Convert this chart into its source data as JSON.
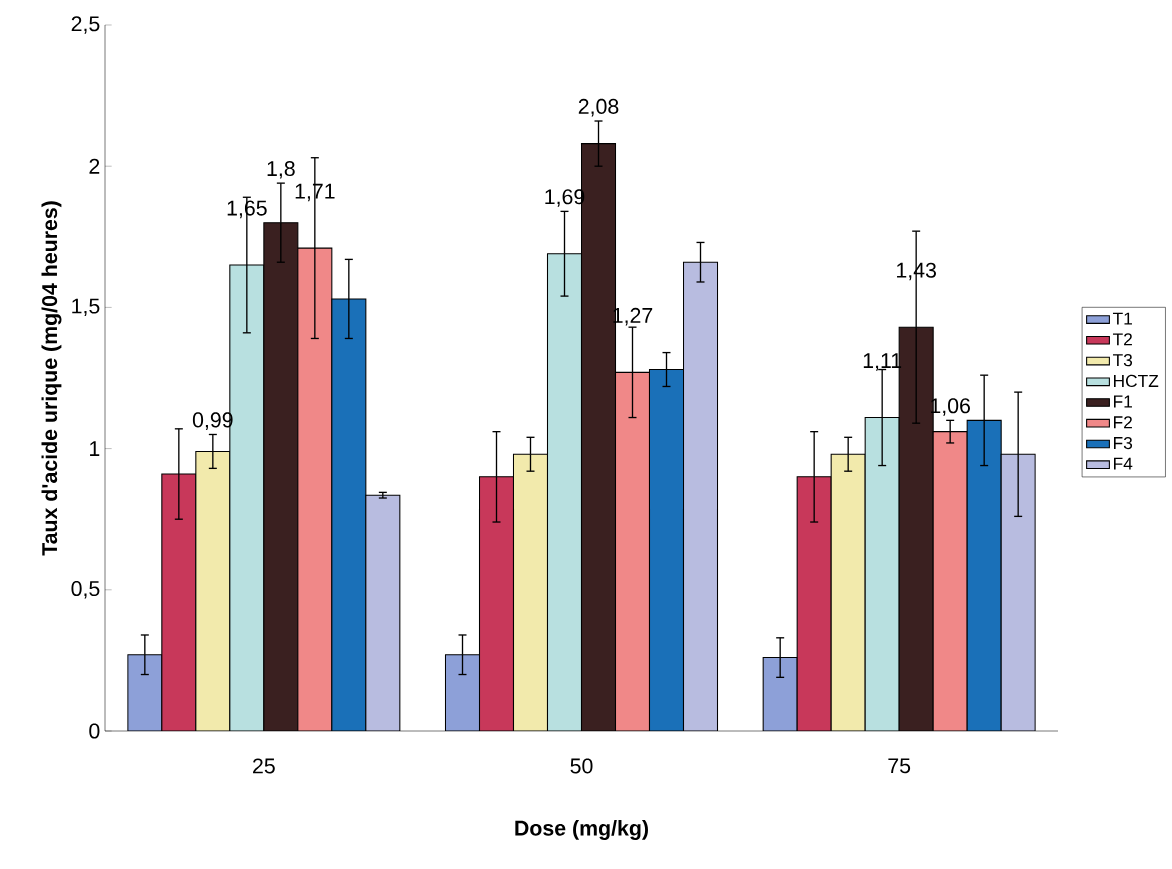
{
  "chart_data": {
    "type": "bar",
    "xlabel": "Dose (mg/kg)",
    "ylabel": "Taux d'acide urique (mg/04 heures)",
    "categories": [
      "25",
      "50",
      "75"
    ],
    "ylim": [
      0,
      2.5
    ],
    "yticks": [
      0,
      {
        "value": 0.5,
        "label": "0,5"
      },
      1,
      {
        "value": 1.5,
        "label": "1,5"
      },
      2,
      {
        "value": 2.5,
        "label": "2,5"
      }
    ],
    "grid": false,
    "legend": "right",
    "series": [
      {
        "name": "T1",
        "color": "#8da0d8",
        "values": [
          0.27,
          0.27,
          0.26
        ],
        "errors": [
          0.07,
          0.07,
          0.07
        ],
        "value_labels": [
          null,
          null,
          null
        ]
      },
      {
        "name": "T2",
        "color": "#c8385a",
        "values": [
          0.91,
          0.9,
          0.9
        ],
        "errors": [
          0.16,
          0.16,
          0.16
        ],
        "value_labels": [
          null,
          null,
          null
        ]
      },
      {
        "name": "T3",
        "color": "#f2eaac",
        "values": [
          0.99,
          0.98,
          0.98
        ],
        "errors": [
          0.06,
          0.06,
          0.06
        ],
        "value_labels": [
          "0,99",
          null,
          null
        ]
      },
      {
        "name": "HCTZ",
        "color": "#b8e0e0",
        "values": [
          1.65,
          1.69,
          1.11
        ],
        "errors": [
          0.24,
          0.15,
          0.17
        ],
        "value_labels": [
          "1,65",
          "1,69",
          "1,11"
        ]
      },
      {
        "name": "F1",
        "color": "#3a2020",
        "values": [
          1.8,
          2.08,
          1.43
        ],
        "errors": [
          0.14,
          0.08,
          0.34
        ],
        "value_labels": [
          "1,8",
          "2,08",
          "1,43"
        ]
      },
      {
        "name": "F2",
        "color": "#f08888",
        "values": [
          1.71,
          1.27,
          1.06
        ],
        "errors": [
          0.32,
          0.16,
          0.04
        ],
        "value_labels": [
          "1,71",
          "1,27",
          "1,06"
        ]
      },
      {
        "name": "F3",
        "color": "#1a70b8",
        "values": [
          1.53,
          1.28,
          1.1
        ],
        "errors": [
          0.14,
          0.06,
          0.16
        ],
        "value_labels": [
          null,
          null,
          null
        ]
      },
      {
        "name": "F4",
        "color": "#b8bce0",
        "values": [
          0.835,
          1.66,
          0.98
        ],
        "errors": [
          0.01,
          0.07,
          0.22
        ],
        "value_labels": [
          null,
          null,
          null
        ]
      }
    ]
  }
}
